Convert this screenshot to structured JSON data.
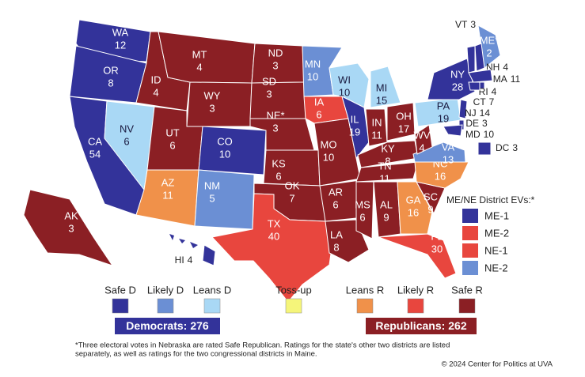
{
  "ratings": [
    {
      "label": "Safe D",
      "color": "#33339a"
    },
    {
      "label": "Likely D",
      "color": "#6b8fd4"
    },
    {
      "label": "Leans D",
      "color": "#a9d8f5"
    },
    {
      "label": "Toss-up",
      "color": "#f5f57a"
    },
    {
      "label": "Leans R",
      "color": "#f0914a"
    },
    {
      "label": "Likely R",
      "color": "#e8463e"
    },
    {
      "label": "Safe R",
      "color": "#8b1f24"
    }
  ],
  "states": [
    {
      "abbr": "WA",
      "ev": 12,
      "rating": "Safe D"
    },
    {
      "abbr": "OR",
      "ev": 8,
      "rating": "Safe D"
    },
    {
      "abbr": "CA",
      "ev": 54,
      "rating": "Safe D"
    },
    {
      "abbr": "NV",
      "ev": 6,
      "rating": "Leans D"
    },
    {
      "abbr": "ID",
      "ev": 4,
      "rating": "Safe R"
    },
    {
      "abbr": "MT",
      "ev": 4,
      "rating": "Safe R"
    },
    {
      "abbr": "WY",
      "ev": 3,
      "rating": "Safe R"
    },
    {
      "abbr": "UT",
      "ev": 6,
      "rating": "Safe R"
    },
    {
      "abbr": "CO",
      "ev": 10,
      "rating": "Safe D"
    },
    {
      "abbr": "AZ",
      "ev": 11,
      "rating": "Leans R"
    },
    {
      "abbr": "NM",
      "ev": 5,
      "rating": "Likely D"
    },
    {
      "abbr": "ND",
      "ev": 3,
      "rating": "Safe R"
    },
    {
      "abbr": "SD",
      "ev": 3,
      "rating": "Safe R"
    },
    {
      "abbr": "NE*",
      "ev": 3,
      "rating": "Safe R"
    },
    {
      "abbr": "KS",
      "ev": 6,
      "rating": "Safe R"
    },
    {
      "abbr": "OK",
      "ev": 7,
      "rating": "Safe R"
    },
    {
      "abbr": "TX",
      "ev": 40,
      "rating": "Likely R"
    },
    {
      "abbr": "MN",
      "ev": 10,
      "rating": "Likely D"
    },
    {
      "abbr": "IA",
      "ev": 6,
      "rating": "Likely R"
    },
    {
      "abbr": "MO",
      "ev": 10,
      "rating": "Safe R"
    },
    {
      "abbr": "AR",
      "ev": 6,
      "rating": "Safe R"
    },
    {
      "abbr": "LA",
      "ev": 8,
      "rating": "Safe R"
    },
    {
      "abbr": "WI",
      "ev": 10,
      "rating": "Leans D"
    },
    {
      "abbr": "MI",
      "ev": 15,
      "rating": "Leans D"
    },
    {
      "abbr": "IL",
      "ev": 19,
      "rating": "Safe D"
    },
    {
      "abbr": "IN",
      "ev": 11,
      "rating": "Safe R"
    },
    {
      "abbr": "OH",
      "ev": 17,
      "rating": "Safe R"
    },
    {
      "abbr": "KY",
      "ev": 8,
      "rating": "Safe R"
    },
    {
      "abbr": "TN",
      "ev": 11,
      "rating": "Safe R"
    },
    {
      "abbr": "MS",
      "ev": 6,
      "rating": "Safe R"
    },
    {
      "abbr": "AL",
      "ev": 9,
      "rating": "Safe R"
    },
    {
      "abbr": "GA",
      "ev": 16,
      "rating": "Leans R"
    },
    {
      "abbr": "FL",
      "ev": 30,
      "rating": "Likely R"
    },
    {
      "abbr": "SC",
      "ev": 9,
      "rating": "Safe R"
    },
    {
      "abbr": "NC",
      "ev": 16,
      "rating": "Leans R"
    },
    {
      "abbr": "VA",
      "ev": 13,
      "rating": "Likely D"
    },
    {
      "abbr": "WV",
      "ev": 4,
      "rating": "Safe R"
    },
    {
      "abbr": "PA",
      "ev": 19,
      "rating": "Leans D"
    },
    {
      "abbr": "NY",
      "ev": 28,
      "rating": "Safe D"
    },
    {
      "abbr": "ME*",
      "ev": 2,
      "rating": "Likely D"
    },
    {
      "abbr": "AK",
      "ev": 3,
      "rating": "Safe R"
    },
    {
      "abbr": "VT",
      "ev": 3,
      "rating": "Safe D"
    },
    {
      "abbr": "NH",
      "ev": 4,
      "rating": "Safe D"
    },
    {
      "abbr": "MA",
      "ev": 11,
      "rating": "Safe D"
    },
    {
      "abbr": "RI",
      "ev": 4,
      "rating": "Safe D"
    },
    {
      "abbr": "CT",
      "ev": 7,
      "rating": "Safe D"
    },
    {
      "abbr": "NJ",
      "ev": 14,
      "rating": "Safe D"
    },
    {
      "abbr": "DE",
      "ev": 3,
      "rating": "Safe D"
    },
    {
      "abbr": "MD",
      "ev": 10,
      "rating": "Safe D"
    },
    {
      "abbr": "HI",
      "ev": 4,
      "rating": "Safe D"
    },
    {
      "abbr": "DC",
      "ev": 3,
      "rating": "Safe D"
    }
  ],
  "district": {
    "title": "ME/NE District EVs:*",
    "items": [
      {
        "name": "ME-1",
        "rating": "Safe D"
      },
      {
        "name": "ME-2",
        "rating": "Likely R"
      },
      {
        "name": "NE-1",
        "rating": "Likely R"
      },
      {
        "name": "NE-2",
        "rating": "Likely D"
      }
    ]
  },
  "totals": [
    {
      "label": "Democrats:",
      "ev": 276,
      "color": "#33339a"
    },
    {
      "label": "Republicans:",
      "ev": 262,
      "color": "#8b1f24"
    }
  ],
  "footnote": [
    "*Three electoral votes in Nebraska are rated Safe Republican. Ratings for the state's other two districts are listed",
    "separately, as well as ratings for the two congressional districts in Maine."
  ],
  "copyright": "© 2024 Center for Politics at UVA"
}
